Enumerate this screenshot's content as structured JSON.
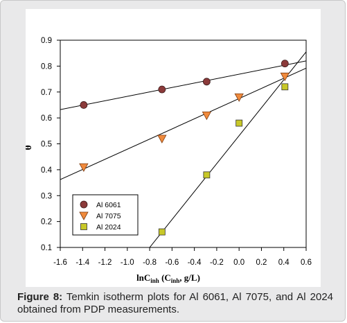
{
  "figure": {
    "caption_label": "Figure 8:",
    "caption_text": " Temkin isotherm plots for Al 6061, Al 7075, and Al 2024 obtained from PDP measurements."
  },
  "chart_data": {
    "type": "scatter",
    "xlabel_main": "lnC",
    "xlabel_sub": "inh",
    "xlabel_mid": " (C",
    "xlabel_sub2": "inh",
    "xlabel_end": ", g/L)",
    "ylabel": "θ",
    "xlim": [
      -1.6,
      0.6
    ],
    "ylim": [
      0.1,
      0.9
    ],
    "xticks": [
      "-1.6",
      "-1.4",
      "-1.2",
      "-1.0",
      "-0.8",
      "-0.6",
      "-0.4",
      "-0.2",
      "0.0",
      "0.2",
      "0.4",
      "0.6"
    ],
    "yticks": [
      "0.1",
      "0.2",
      "0.3",
      "0.4",
      "0.5",
      "0.6",
      "0.7",
      "0.8",
      "0.9"
    ],
    "legend_position": "bottom-left",
    "series": [
      {
        "name": "Al 6061",
        "marker": "circle",
        "color": "#8b3a3a",
        "x": [
          -1.39,
          -0.69,
          -0.29,
          0.41
        ],
        "y": [
          0.65,
          0.71,
          0.74,
          0.81
        ]
      },
      {
        "name": "Al 7075",
        "marker": "triangle-down",
        "color": "#f08a3c",
        "x": [
          -1.39,
          -0.69,
          -0.29,
          0.0,
          0.41
        ],
        "y": [
          0.41,
          0.52,
          0.61,
          0.68,
          0.76
        ]
      },
      {
        "name": "Al 2024",
        "marker": "square",
        "color": "#c8c828",
        "x": [
          -0.69,
          -0.29,
          0.0,
          0.41
        ],
        "y": [
          0.16,
          0.38,
          0.58,
          0.72
        ]
      }
    ],
    "fit_lines": [
      {
        "series": "Al 6061",
        "x": [
          -1.6,
          0.6
        ],
        "y": [
          0.632,
          0.82
        ]
      },
      {
        "series": "Al 7075",
        "x": [
          -1.6,
          0.6
        ],
        "y": [
          0.362,
          0.792
        ]
      },
      {
        "series": "Al 2024",
        "x": [
          -0.8,
          0.6
        ],
        "y": [
          0.1,
          0.855
        ]
      }
    ]
  }
}
